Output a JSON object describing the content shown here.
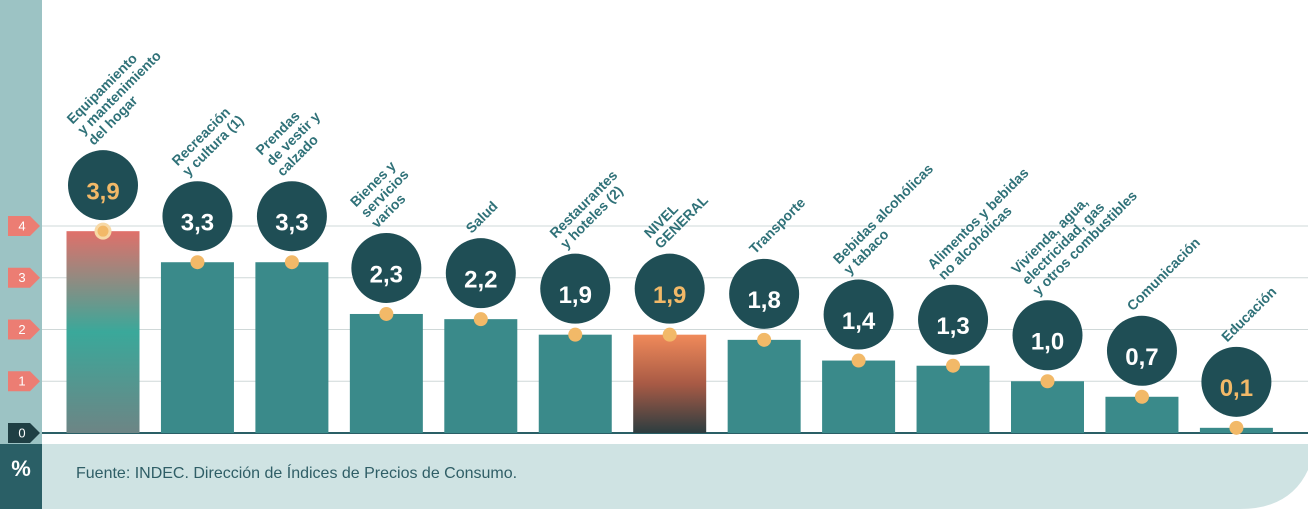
{
  "chart_data": {
    "type": "bar",
    "unit_label": "%",
    "source": "Fuente: INDEC. Dirección de Índices de Precios de Consumo.",
    "categories": [
      "Equipamiento\ny mantenimiento\ndel hogar",
      "Recreación\ny cultura (1)",
      "Prendas\nde vestir y\ncalzado",
      "Bienes y\nservicios\nvarios",
      "Salud",
      "Restaurantes\ny hoteles (2)",
      "NIVEL\nGENERAL",
      "Transporte",
      "Bebidas alcohólicas\ny tabaco",
      "Alimentos y bebidas\nno alcohólicas",
      "Vivienda, agua,\nelectricidad, gas\ny otros combustibles",
      "Comunicación",
      "Educación"
    ],
    "values": [
      3.9,
      3.3,
      3.3,
      2.3,
      2.2,
      1.9,
      1.9,
      1.8,
      1.4,
      1.3,
      1.0,
      0.7,
      0.1
    ],
    "value_labels": [
      "3,9",
      "3,3",
      "3,3",
      "2,3",
      "2,2",
      "1,9",
      "1,9",
      "1,8",
      "1,4",
      "1,3",
      "1,0",
      "0,7",
      "0,1"
    ],
    "colors": [
      "#e0706a",
      "#3a8a8a",
      "#3a8a8a",
      "#3a8a8a",
      "#3a8a8a",
      "#3a8a8a",
      "#f08a5a",
      "#3a8a8a",
      "#3a8a8a",
      "#3a8a8a",
      "#3a8a8a",
      "#3a8a8a",
      "#3a8a8a"
    ],
    "value_label_colors": [
      "#f2b968",
      "#ffffff",
      "#ffffff",
      "#ffffff",
      "#ffffff",
      "#ffffff",
      "#f2b968",
      "#ffffff",
      "#ffffff",
      "#ffffff",
      "#ffffff",
      "#ffffff",
      "#f2b968"
    ],
    "ylim": [
      0,
      4
    ],
    "yticks": [
      0,
      1,
      2,
      3,
      4
    ],
    "grid": true
  }
}
